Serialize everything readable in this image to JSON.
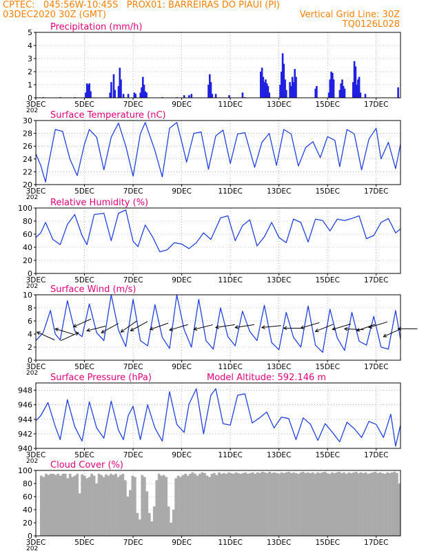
{
  "header": {
    "line1": "CPTEC:   045:56W-10:45S   PROX01: BARREIRAS DO PIAUI (PI)",
    "line2_left": "03DEC2020 30Z (GMT)",
    "line2_right": "Vertical Grid Line: 30Z",
    "code": "TQ0126L028"
  },
  "colors": {
    "header": "#ff8000",
    "title": "#e0007a",
    "series": "#2040e0",
    "bar": "#2020e0",
    "cloud": "#aaaaaa"
  },
  "x_ticks": [
    "3DEC",
    "5DEC",
    "7DEC",
    "9DEC",
    "11DEC",
    "13DEC",
    "15DEC",
    "17DEC"
  ],
  "x_cut_label": "202",
  "chart_data": [
    {
      "type": "bar",
      "title": "Precipitation (mm/h)",
      "ylim": [
        0,
        5
      ],
      "yticks": [
        0,
        1,
        2,
        3,
        4,
        5
      ],
      "x_unit": "days since 03DEC 00Z",
      "values": [
        [
          0.3,
          0.05
        ],
        [
          1.0,
          0.05
        ],
        [
          1.6,
          0.05
        ],
        [
          2.05,
          0.4
        ],
        [
          2.1,
          1.1
        ],
        [
          2.15,
          1.0
        ],
        [
          2.2,
          1.1
        ],
        [
          2.25,
          0.5
        ],
        [
          3.05,
          0.4
        ],
        [
          3.1,
          1.2
        ],
        [
          3.2,
          1.8
        ],
        [
          3.25,
          0.6
        ],
        [
          3.4,
          0.9
        ],
        [
          3.45,
          2.3
        ],
        [
          3.5,
          1.4
        ],
        [
          3.6,
          0.3
        ],
        [
          3.8,
          0.3
        ],
        [
          4.05,
          0.4
        ],
        [
          4.1,
          0.3
        ],
        [
          4.3,
          0.4
        ],
        [
          4.35,
          0.8
        ],
        [
          4.4,
          1.6
        ],
        [
          4.45,
          1.0
        ],
        [
          4.5,
          0.5
        ],
        [
          4.55,
          0.4
        ],
        [
          5.2,
          0.05
        ],
        [
          5.8,
          0.05
        ],
        [
          6.1,
          0.2
        ],
        [
          6.3,
          0.2
        ],
        [
          6.4,
          0.3
        ],
        [
          7.1,
          1.0
        ],
        [
          7.15,
          1.8
        ],
        [
          7.2,
          1.2
        ],
        [
          7.25,
          0.3
        ],
        [
          7.4,
          0.3
        ],
        [
          7.95,
          0.2
        ],
        [
          8.5,
          0.4
        ],
        [
          8.6,
          0.05
        ],
        [
          9.25,
          2.0
        ],
        [
          9.3,
          2.3
        ],
        [
          9.35,
          1.6
        ],
        [
          9.4,
          1.2
        ],
        [
          9.45,
          1.4
        ],
        [
          9.5,
          1.1
        ],
        [
          9.55,
          0.9
        ],
        [
          9.6,
          0.4
        ],
        [
          10.05,
          1.0
        ],
        [
          10.1,
          2.0
        ],
        [
          10.15,
          3.4
        ],
        [
          10.2,
          2.6
        ],
        [
          10.25,
          1.4
        ],
        [
          10.3,
          0.6
        ],
        [
          10.45,
          1.2
        ],
        [
          10.5,
          0.9
        ],
        [
          10.55,
          1.6
        ],
        [
          10.6,
          1.2
        ],
        [
          10.65,
          2.2
        ],
        [
          10.7,
          1.6
        ],
        [
          11.5,
          0.7
        ],
        [
          11.55,
          0.9
        ],
        [
          12.05,
          0.4
        ],
        [
          12.1,
          1.4
        ],
        [
          12.15,
          2.0
        ],
        [
          12.2,
          1.9
        ],
        [
          12.25,
          1.4
        ],
        [
          12.5,
          0.6
        ],
        [
          12.55,
          1.1
        ],
        [
          12.6,
          1.4
        ],
        [
          12.65,
          0.9
        ],
        [
          12.7,
          0.7
        ],
        [
          13.05,
          1.2
        ],
        [
          13.1,
          2.8
        ],
        [
          13.15,
          2.4
        ],
        [
          13.2,
          1.0
        ],
        [
          13.25,
          1.4
        ],
        [
          13.3,
          1.6
        ],
        [
          13.35,
          0.4
        ],
        [
          13.55,
          0.3
        ],
        [
          14.9,
          0.8
        ]
      ]
    },
    {
      "type": "line",
      "title": "Surface Temperature (nC)",
      "ylim": [
        20,
        30
      ],
      "yticks": [
        20,
        22,
        24,
        26,
        28,
        30
      ],
      "x": [
        0,
        0.2,
        0.4,
        0.5,
        0.8,
        1.1,
        1.4,
        1.7,
        2.0,
        2.2,
        2.5,
        2.8,
        3.1,
        3.4,
        3.7,
        4.0,
        4.3,
        4.5,
        4.9,
        5.2,
        5.5,
        5.8,
        6.0,
        6.2,
        6.5,
        6.8,
        7.1,
        7.4,
        7.7,
        8.0,
        8.3,
        8.6,
        9.0,
        9.3,
        9.6,
        9.9,
        10.2,
        10.5,
        10.8,
        11.1,
        11.4,
        11.7,
        12.0,
        12.3,
        12.5,
        12.8,
        13.1,
        13.4,
        13.7,
        14.0,
        14.2,
        14.5,
        14.8,
        15.0
      ],
      "y": [
        24.8,
        23.0,
        20.4,
        22.8,
        28.6,
        28.3,
        24.0,
        21.4,
        26.3,
        28.6,
        27.4,
        22.3,
        27.4,
        29.6,
        26.0,
        21.3,
        27.9,
        29.7,
        25.3,
        21.2,
        28.8,
        29.7,
        26.7,
        23.5,
        28.0,
        28.2,
        22.4,
        27.6,
        28.5,
        23.3,
        27.9,
        28.1,
        22.7,
        26.6,
        28.0,
        23.0,
        28.6,
        27.9,
        22.9,
        25.8,
        26.7,
        24.2,
        27.5,
        26.9,
        22.8,
        28.6,
        27.9,
        22.3,
        27.1,
        28.8,
        24.0,
        26.6,
        22.5,
        26.3
      ]
    },
    {
      "type": "line",
      "title": "Relative Humidity (%)",
      "ylim": [
        0,
        100
      ],
      "yticks": [
        0,
        20,
        40,
        60,
        80,
        100
      ],
      "x": [
        0,
        0.2,
        0.4,
        0.7,
        1.0,
        1.3,
        1.6,
        1.9,
        2.1,
        2.4,
        2.8,
        3.1,
        3.4,
        3.7,
        4.0,
        4.2,
        4.5,
        4.8,
        5.1,
        5.4,
        5.7,
        6.0,
        6.3,
        6.6,
        6.9,
        7.2,
        7.6,
        7.9,
        8.2,
        8.5,
        8.8,
        9.1,
        9.4,
        9.7,
        10.0,
        10.3,
        10.6,
        10.9,
        11.2,
        11.5,
        11.8,
        12.1,
        12.4,
        12.7,
        13.0,
        13.3,
        13.6,
        13.9,
        14.2,
        14.5,
        14.8,
        15.0
      ],
      "y": [
        55,
        62,
        78,
        52,
        44,
        75,
        90,
        58,
        44,
        90,
        92,
        50,
        92,
        97,
        49,
        41,
        74,
        56,
        33,
        36,
        47,
        45,
        38,
        47,
        62,
        52,
        85,
        88,
        50,
        73,
        82,
        42,
        56,
        78,
        55,
        47,
        83,
        78,
        48,
        83,
        81,
        65,
        83,
        81,
        84,
        88,
        53,
        58,
        78,
        84,
        62,
        68
      ]
    },
    {
      "type": "line",
      "title": "Surface Wind (m/s)",
      "ylim": [
        0,
        10
      ],
      "yticks": [
        0,
        2,
        4,
        6,
        8,
        10
      ],
      "x": [
        0,
        0.3,
        0.6,
        0.8,
        1.0,
        1.3,
        1.6,
        1.9,
        2.2,
        2.5,
        2.8,
        3.1,
        3.4,
        3.7,
        4.0,
        4.3,
        4.6,
        4.9,
        5.2,
        5.5,
        5.8,
        6.1,
        6.4,
        6.7,
        7.0,
        7.3,
        7.6,
        7.9,
        8.2,
        8.5,
        8.8,
        9.1,
        9.4,
        9.7,
        10.0,
        10.3,
        10.6,
        10.9,
        11.2,
        11.5,
        11.8,
        12.1,
        12.4,
        12.7,
        13.0,
        13.3,
        13.6,
        13.9,
        14.2,
        14.5,
        14.8,
        15.0
      ],
      "y": [
        3.0,
        4.2,
        7.6,
        4.0,
        3.1,
        9.1,
        4.5,
        3.6,
        8.6,
        4.2,
        3.0,
        10.0,
        4.6,
        2.1,
        9.3,
        3.0,
        2.2,
        8.5,
        3.5,
        1.8,
        10.0,
        4.7,
        2.0,
        9.3,
        3.0,
        1.7,
        8.0,
        3.6,
        2.2,
        7.5,
        4.4,
        3.0,
        8.4,
        2.7,
        1.6,
        7.3,
        3.5,
        2.0,
        8.3,
        2.3,
        1.2,
        7.8,
        3.4,
        1.5,
        7.3,
        2.9,
        2.3,
        6.7,
        2.0,
        1.7,
        7.6,
        3.2
      ],
      "arrows": [
        {
          "x": 0.05,
          "y": 4.3,
          "u": 1,
          "v": -0.45
        },
        {
          "x": 0.8,
          "y": 4.8,
          "u": 1,
          "v": -0.3
        },
        {
          "x": 1.75,
          "y": 4.2,
          "u": -1,
          "v": -0.45
        },
        {
          "x": 1.55,
          "y": 5.1,
          "u": 1,
          "v": 0.45
        },
        {
          "x": 2.1,
          "y": 4.5,
          "u": 1,
          "v": 0.25
        },
        {
          "x": 2.7,
          "y": 4.2,
          "u": 1,
          "v": 0.55
        },
        {
          "x": 3.5,
          "y": 4.3,
          "u": 1,
          "v": 0.7
        },
        {
          "x": 3.9,
          "y": 4.5,
          "u": 1,
          "v": 0.55
        },
        {
          "x": 4.7,
          "y": 4.7,
          "u": 1,
          "v": 0.35
        },
        {
          "x": 5.5,
          "y": 4.6,
          "u": 1,
          "v": 0.3
        },
        {
          "x": 6.5,
          "y": 4.7,
          "u": 1,
          "v": 0.25
        },
        {
          "x": 7.4,
          "y": 5.0,
          "u": 1,
          "v": 0.15
        },
        {
          "x": 8.2,
          "y": 5.0,
          "u": 1,
          "v": 0.15
        },
        {
          "x": 9.3,
          "y": 5.0,
          "u": 1,
          "v": 0.1
        },
        {
          "x": 10.2,
          "y": 4.9,
          "u": 1,
          "v": 0.0
        },
        {
          "x": 10.9,
          "y": 4.9,
          "u": 1,
          "v": 0.3
        },
        {
          "x": 11.5,
          "y": 4.4,
          "u": 1,
          "v": 0.4
        },
        {
          "x": 12.2,
          "y": 4.7,
          "u": 1,
          "v": 0.3
        },
        {
          "x": 12.7,
          "y": 4.8,
          "u": 1,
          "v": -0.05
        },
        {
          "x": 13.2,
          "y": 4.5,
          "u": 1,
          "v": 0.35
        },
        {
          "x": 13.7,
          "y": 5.0,
          "u": 1,
          "v": 0.3
        },
        {
          "x": 14.3,
          "y": 3.6,
          "u": 1,
          "v": 0.45
        },
        {
          "x": 14.9,
          "y": 4.8,
          "u": 1,
          "v": 0.0
        }
      ]
    },
    {
      "type": "line",
      "title": "Surface Pressure (hPa)",
      "annotation": "Model Altitude: 592.146 m",
      "ylim": [
        940,
        949
      ],
      "yticks": [
        940,
        942,
        944,
        946,
        948
      ],
      "x": [
        0,
        0.2,
        0.5,
        0.8,
        1.0,
        1.3,
        1.6,
        1.9,
        2.2,
        2.5,
        2.8,
        3.1,
        3.4,
        3.6,
        3.8,
        4.0,
        4.3,
        4.6,
        4.9,
        5.2,
        5.5,
        5.8,
        6.1,
        6.3,
        6.6,
        6.9,
        7.2,
        7.4,
        7.7,
        8.0,
        8.3,
        8.6,
        8.9,
        9.2,
        9.5,
        9.8,
        10.1,
        10.4,
        10.7,
        11.0,
        11.3,
        11.6,
        11.9,
        12.2,
        12.5,
        12.8,
        13.1,
        13.4,
        13.7,
        14.0,
        14.3,
        14.6,
        14.8,
        15.0
      ],
      "y": [
        943.8,
        944.5,
        946.3,
        943.0,
        941.2,
        946.7,
        943.0,
        941.0,
        946.4,
        942.8,
        941.4,
        946.5,
        942.5,
        941.2,
        944.5,
        945.8,
        941.2,
        946.0,
        942.8,
        941.0,
        947.8,
        943.3,
        942.2,
        946.1,
        948.2,
        942.0,
        947.3,
        948.2,
        943.4,
        943.2,
        947.3,
        947.5,
        943.5,
        944.2,
        945.0,
        942.8,
        944.3,
        944.1,
        941.2,
        944.2,
        943.3,
        941.1,
        943.4,
        942.2,
        940.9,
        943.6,
        942.7,
        941.5,
        943.7,
        943.3,
        941.5,
        944.7,
        940.3,
        943.2
      ]
    },
    {
      "type": "bar",
      "title": "Cloud Cover (%)",
      "ylim": [
        0,
        100
      ],
      "yticks": [
        0,
        20,
        40,
        60,
        80,
        100
      ],
      "x_unit": "days since 03DEC 00Z",
      "step": 0.1,
      "values": [
        92,
        90,
        95,
        93,
        95,
        95,
        93,
        95,
        92,
        95,
        95,
        88,
        95,
        90,
        92,
        95,
        65,
        94,
        92,
        88,
        90,
        95,
        92,
        80,
        95,
        93,
        90,
        94,
        92,
        95,
        93,
        95,
        90,
        93,
        95,
        85,
        60,
        70,
        92,
        90,
        35,
        25,
        93,
        90,
        68,
        35,
        22,
        45,
        85,
        95,
        92,
        93,
        90,
        45,
        20,
        40,
        88,
        92,
        90,
        93,
        95,
        92,
        95,
        97,
        95,
        92,
        95,
        97,
        96,
        92,
        90,
        95,
        96,
        93,
        97,
        95,
        96,
        95,
        97,
        96,
        95,
        97,
        96,
        95,
        96,
        97,
        95,
        96,
        97,
        95,
        97,
        96,
        98,
        97,
        96,
        98,
        96,
        97,
        96,
        95,
        97,
        96,
        97,
        98,
        96,
        97,
        96,
        95,
        97,
        98,
        96,
        97,
        96,
        97,
        95,
        97,
        96,
        97,
        98,
        96,
        95,
        97,
        96,
        97,
        98,
        96,
        97,
        95,
        97,
        96,
        97,
        98,
        96,
        97,
        96,
        97,
        95,
        96,
        97,
        98,
        96,
        97,
        96,
        95,
        97,
        96,
        97,
        98,
        96,
        80
      ]
    }
  ]
}
